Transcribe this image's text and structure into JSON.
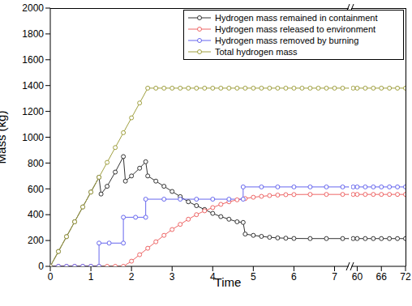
{
  "chart_data": [
    {
      "type": "line",
      "xlabel": "Time",
      "ylabel": "Mass (kg)",
      "legend": "upper right",
      "xlim": [
        0,
        7.35
      ],
      "xticks": [
        0,
        1,
        2,
        3,
        4,
        5,
        6,
        7
      ],
      "ylim": [
        0,
        2000
      ],
      "yticks": [
        0,
        200,
        400,
        600,
        800,
        1000,
        1200,
        1400,
        1600,
        1800,
        2000
      ],
      "series": [
        {
          "name": "Hydrogen mass remained in containment",
          "color": "#333333",
          "marker": "circle",
          "x": [
            0,
            0.2,
            0.4,
            0.6,
            0.8,
            1.0,
            1.2,
            1.25,
            1.4,
            1.6,
            1.8,
            1.85,
            2.0,
            2.2,
            2.35,
            2.4,
            2.6,
            2.8,
            3.0,
            3.2,
            3.4,
            3.6,
            3.8,
            4.0,
            4.2,
            4.4,
            4.6,
            4.75,
            4.8,
            5.0,
            5.2,
            5.4,
            5.6,
            5.8,
            6.0,
            6.4,
            6.8,
            7.2,
            7.4
          ],
          "values": [
            0,
            115,
            230,
            345,
            460,
            575,
            690,
            560,
            620,
            730,
            850,
            660,
            700,
            760,
            810,
            700,
            660,
            620,
            580,
            540,
            500,
            470,
            440,
            410,
            385,
            365,
            345,
            340,
            250,
            240,
            232,
            225,
            220,
            218,
            216,
            215,
            215,
            215,
            215
          ]
        },
        {
          "name": "Hydrogen mass released to environment",
          "color": "#ee6666",
          "marker": "circle",
          "x": [
            0,
            0.2,
            0.4,
            0.6,
            0.8,
            1.0,
            1.2,
            1.4,
            1.6,
            1.8,
            2.0,
            2.2,
            2.4,
            2.6,
            2.8,
            3.0,
            3.2,
            3.4,
            3.6,
            3.8,
            4.0,
            4.2,
            4.4,
            4.6,
            4.8,
            5.0,
            5.2,
            5.4,
            5.6,
            5.8,
            6.0,
            6.4,
            6.8,
            7.2,
            7.4
          ],
          "values": [
            0,
            0,
            0,
            0,
            0,
            0,
            0,
            0,
            0,
            0,
            40,
            90,
            140,
            190,
            240,
            285,
            325,
            365,
            400,
            430,
            455,
            480,
            500,
            515,
            525,
            535,
            542,
            548,
            552,
            555,
            556,
            557,
            557,
            557,
            557
          ]
        },
        {
          "name": "Hydrogen mass removed by burning",
          "color": "#6666ee",
          "marker": "circle",
          "x": [
            0,
            0.2,
            0.4,
            0.6,
            0.8,
            1.0,
            1.2,
            1.2,
            1.45,
            1.8,
            1.8,
            2.1,
            2.35,
            2.35,
            2.8,
            3.2,
            3.6,
            4.0,
            4.4,
            4.75,
            4.75,
            5.2,
            5.6,
            6.0,
            6.4,
            6.8,
            7.2,
            7.4
          ],
          "values": [
            0,
            0,
            0,
            0,
            0,
            0,
            0,
            180,
            180,
            180,
            380,
            380,
            380,
            520,
            520,
            520,
            520,
            520,
            520,
            520,
            615,
            615,
            615,
            615,
            615,
            615,
            615,
            615
          ]
        },
        {
          "name": "Total hydrogen mass",
          "color": "#a0a040",
          "marker": "circle",
          "x": [
            0,
            0.2,
            0.4,
            0.6,
            0.8,
            1.0,
            1.2,
            1.4,
            1.6,
            1.8,
            2.0,
            2.2,
            2.4,
            2.6,
            2.8,
            3.0,
            3.2,
            3.4,
            3.6,
            3.8,
            4.0,
            4.2,
            4.4,
            4.6,
            4.8,
            5.0,
            5.2,
            5.4,
            5.6,
            5.8,
            6.0,
            6.2,
            6.4,
            6.6,
            6.8,
            7.0,
            7.2,
            7.4
          ],
          "values": [
            0,
            115,
            230,
            345,
            460,
            575,
            690,
            805,
            920,
            1035,
            1150,
            1265,
            1380,
            1380,
            1380,
            1380,
            1380,
            1380,
            1380,
            1380,
            1380,
            1380,
            1380,
            1380,
            1380,
            1380,
            1380,
            1380,
            1380,
            1380,
            1380,
            1380,
            1380,
            1380,
            1380,
            1380,
            1380,
            1380
          ]
        }
      ]
    },
    {
      "type": "line",
      "tick_labels": "x",
      "xlim": [
        58.5,
        72
      ],
      "xticks": [
        60,
        66,
        72
      ],
      "ylim": [
        0,
        2000
      ],
      "series": [
        {
          "name": "Hydrogen mass remained in containment",
          "color": "#333333",
          "marker": "circle",
          "x": [
            59,
            60,
            62,
            64,
            66,
            68,
            70,
            72
          ],
          "values": [
            215,
            215,
            215,
            215,
            215,
            215,
            215,
            215
          ]
        },
        {
          "name": "Hydrogen mass released to environment",
          "color": "#ee6666",
          "marker": "circle",
          "x": [
            59,
            60,
            62,
            64,
            66,
            68,
            70,
            72
          ],
          "values": [
            557,
            557,
            557,
            557,
            557,
            557,
            557,
            557
          ]
        },
        {
          "name": "Hydrogen mass removed by burning",
          "color": "#6666ee",
          "marker": "circle",
          "x": [
            59,
            60,
            62,
            64,
            66,
            68,
            70,
            72
          ],
          "values": [
            615,
            615,
            615,
            615,
            615,
            615,
            615,
            615
          ]
        },
        {
          "name": "Total hydrogen mass",
          "color": "#a0a040",
          "marker": "circle",
          "x": [
            59,
            60,
            62,
            64,
            66,
            68,
            70,
            72
          ],
          "values": [
            1380,
            1380,
            1380,
            1380,
            1380,
            1380,
            1380,
            1380
          ]
        }
      ]
    }
  ]
}
